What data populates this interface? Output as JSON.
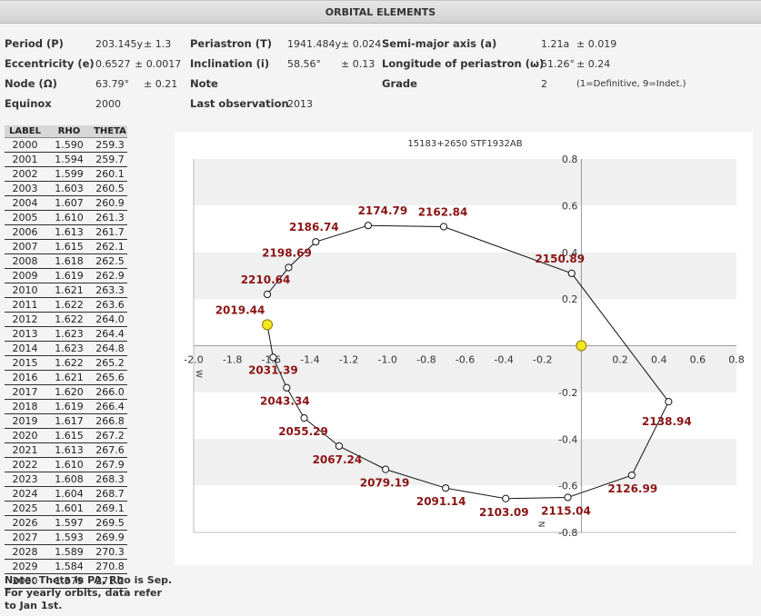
{
  "header": {
    "title": "ORBITAL ELEMENTS"
  },
  "elements": {
    "period_label": "Period (P)",
    "period_value": "203.145y",
    "period_err": "± 1.3",
    "periastron_label": "Periastron (T)",
    "periastron_value": "1941.484y",
    "periastron_err": "± 0.024",
    "semimajor_label": "Semi-major axis (a)",
    "semimajor_value": "1.21a",
    "semimajor_err": "± 0.019",
    "ecc_label": "Eccentricity (e)",
    "ecc_value": "0.6527",
    "ecc_err": "± 0.0017",
    "incl_label": "Inclination (i)",
    "incl_value": "58.56°",
    "incl_err": "± 0.13",
    "long_label": "Longitude of periastron (ω)",
    "long_value": "51.26°",
    "long_err": "± 0.24",
    "node_label": "Node (Ω)",
    "node_value": "63.79°",
    "node_err": "± 0.21",
    "note_label": "Note",
    "grade_label": "Grade",
    "grade_value": "2",
    "grade_desc": "(1=Definitive, 9=Indet.)",
    "equinox_label": "Equinox",
    "equinox_value": "2000",
    "lastobs_label": "Last observation",
    "lastobs_value": "2013"
  },
  "table": {
    "headers": [
      "LABEL",
      "RHO",
      "THETA"
    ],
    "rows": [
      [
        "2000",
        "1.590",
        "259.3"
      ],
      [
        "2001",
        "1.594",
        "259.7"
      ],
      [
        "2002",
        "1.599",
        "260.1"
      ],
      [
        "2003",
        "1.603",
        "260.5"
      ],
      [
        "2004",
        "1.607",
        "260.9"
      ],
      [
        "2005",
        "1.610",
        "261.3"
      ],
      [
        "2006",
        "1.613",
        "261.7"
      ],
      [
        "2007",
        "1.615",
        "262.1"
      ],
      [
        "2008",
        "1.618",
        "262.5"
      ],
      [
        "2009",
        "1.619",
        "262.9"
      ],
      [
        "2010",
        "1.621",
        "263.3"
      ],
      [
        "2011",
        "1.622",
        "263.6"
      ],
      [
        "2012",
        "1.622",
        "264.0"
      ],
      [
        "2013",
        "1.623",
        "264.4"
      ],
      [
        "2014",
        "1.623",
        "264.8"
      ],
      [
        "2015",
        "1.622",
        "265.2"
      ],
      [
        "2016",
        "1.621",
        "265.6"
      ],
      [
        "2017",
        "1.620",
        "266.0"
      ],
      [
        "2018",
        "1.619",
        "266.4"
      ],
      [
        "2019",
        "1.617",
        "266.8"
      ],
      [
        "2020",
        "1.615",
        "267.2"
      ],
      [
        "2021",
        "1.613",
        "267.6"
      ],
      [
        "2022",
        "1.610",
        "267.9"
      ],
      [
        "2023",
        "1.608",
        "268.3"
      ],
      [
        "2024",
        "1.604",
        "268.7"
      ],
      [
        "2025",
        "1.601",
        "269.1"
      ],
      [
        "2026",
        "1.597",
        "269.5"
      ],
      [
        "2027",
        "1.593",
        "269.9"
      ],
      [
        "2028",
        "1.589",
        "270.3"
      ],
      [
        "2029",
        "1.584",
        "270.8"
      ],
      [
        "2030",
        "1.579",
        "271.2"
      ]
    ]
  },
  "note": "Note: Theta is PA, Rho is Sep. For yearly orbits, data refer to Jan 1st.",
  "chart_data": {
    "type": "line",
    "title": "15183+2650 STF1932AB",
    "xlim": [
      -2.0,
      0.8
    ],
    "ylim": [
      -0.8,
      0.8
    ],
    "x_ticks": [
      -2.0,
      -1.8,
      -1.6,
      -1.4,
      -1.2,
      -1.0,
      -0.8,
      -0.6,
      -0.4,
      -0.2,
      0.2,
      0.4,
      0.6,
      0.8
    ],
    "x_tick_labels": [
      "-2.0",
      "-1.8",
      "-1.6",
      "-1.4",
      "-1.2",
      "-1.0",
      "-0.8",
      "-0.6",
      "-0.4",
      "-0.2",
      "0.2",
      "0.4",
      "0.6",
      "0.8"
    ],
    "y_ticks": [
      0.8,
      0.6,
      0.4,
      0.2,
      -0.2,
      -0.4,
      -0.6,
      -0.8
    ],
    "y_tick_labels": [
      "0.8",
      "0.6",
      "0.4",
      "0.2",
      "-0.2",
      "-0.4",
      "-0.6",
      "-0.8"
    ],
    "x_axis_letter": "W",
    "y_axis_letter": "N",
    "grid": "horizontal alternating bands",
    "orbit": [
      {
        "label": "2019.44",
        "x": -1.62,
        "y": 0.09
      },
      {
        "label": "2031.39",
        "x": -1.59,
        "y": -0.05
      },
      {
        "label": "2043.34",
        "x": -1.52,
        "y": -0.18
      },
      {
        "label": "2055.29",
        "x": -1.43,
        "y": -0.31
      },
      {
        "label": "2067.24",
        "x": -1.25,
        "y": -0.43
      },
      {
        "label": "2079.19",
        "x": -1.01,
        "y": -0.53
      },
      {
        "label": "2091.14",
        "x": -0.7,
        "y": -0.61
      },
      {
        "label": "2103.09",
        "x": -0.39,
        "y": -0.655
      },
      {
        "label": "2115.04",
        "x": -0.07,
        "y": -0.65
      },
      {
        "label": "2126.99",
        "x": 0.26,
        "y": -0.555
      },
      {
        "label": "2138.94",
        "x": 0.45,
        "y": -0.24
      },
      {
        "label": "2150.89",
        "x": -0.05,
        "y": 0.31
      },
      {
        "label": "2162.84",
        "x": -0.71,
        "y": 0.51
      },
      {
        "label": "2174.79",
        "x": -1.1,
        "y": 0.515
      },
      {
        "label": "2186.74",
        "x": -1.37,
        "y": 0.445
      },
      {
        "label": "2198.69",
        "x": -1.51,
        "y": 0.335
      },
      {
        "label": "2210.64",
        "x": -1.62,
        "y": 0.22
      }
    ],
    "primary": {
      "x": 0,
      "y": 0
    },
    "current": {
      "label": "2019.44",
      "x": -1.62,
      "y": 0.09
    },
    "colors": {
      "label": "#8b1414",
      "primary": "#f2e61e",
      "current": "#f2e61e",
      "line": "#111111"
    }
  }
}
